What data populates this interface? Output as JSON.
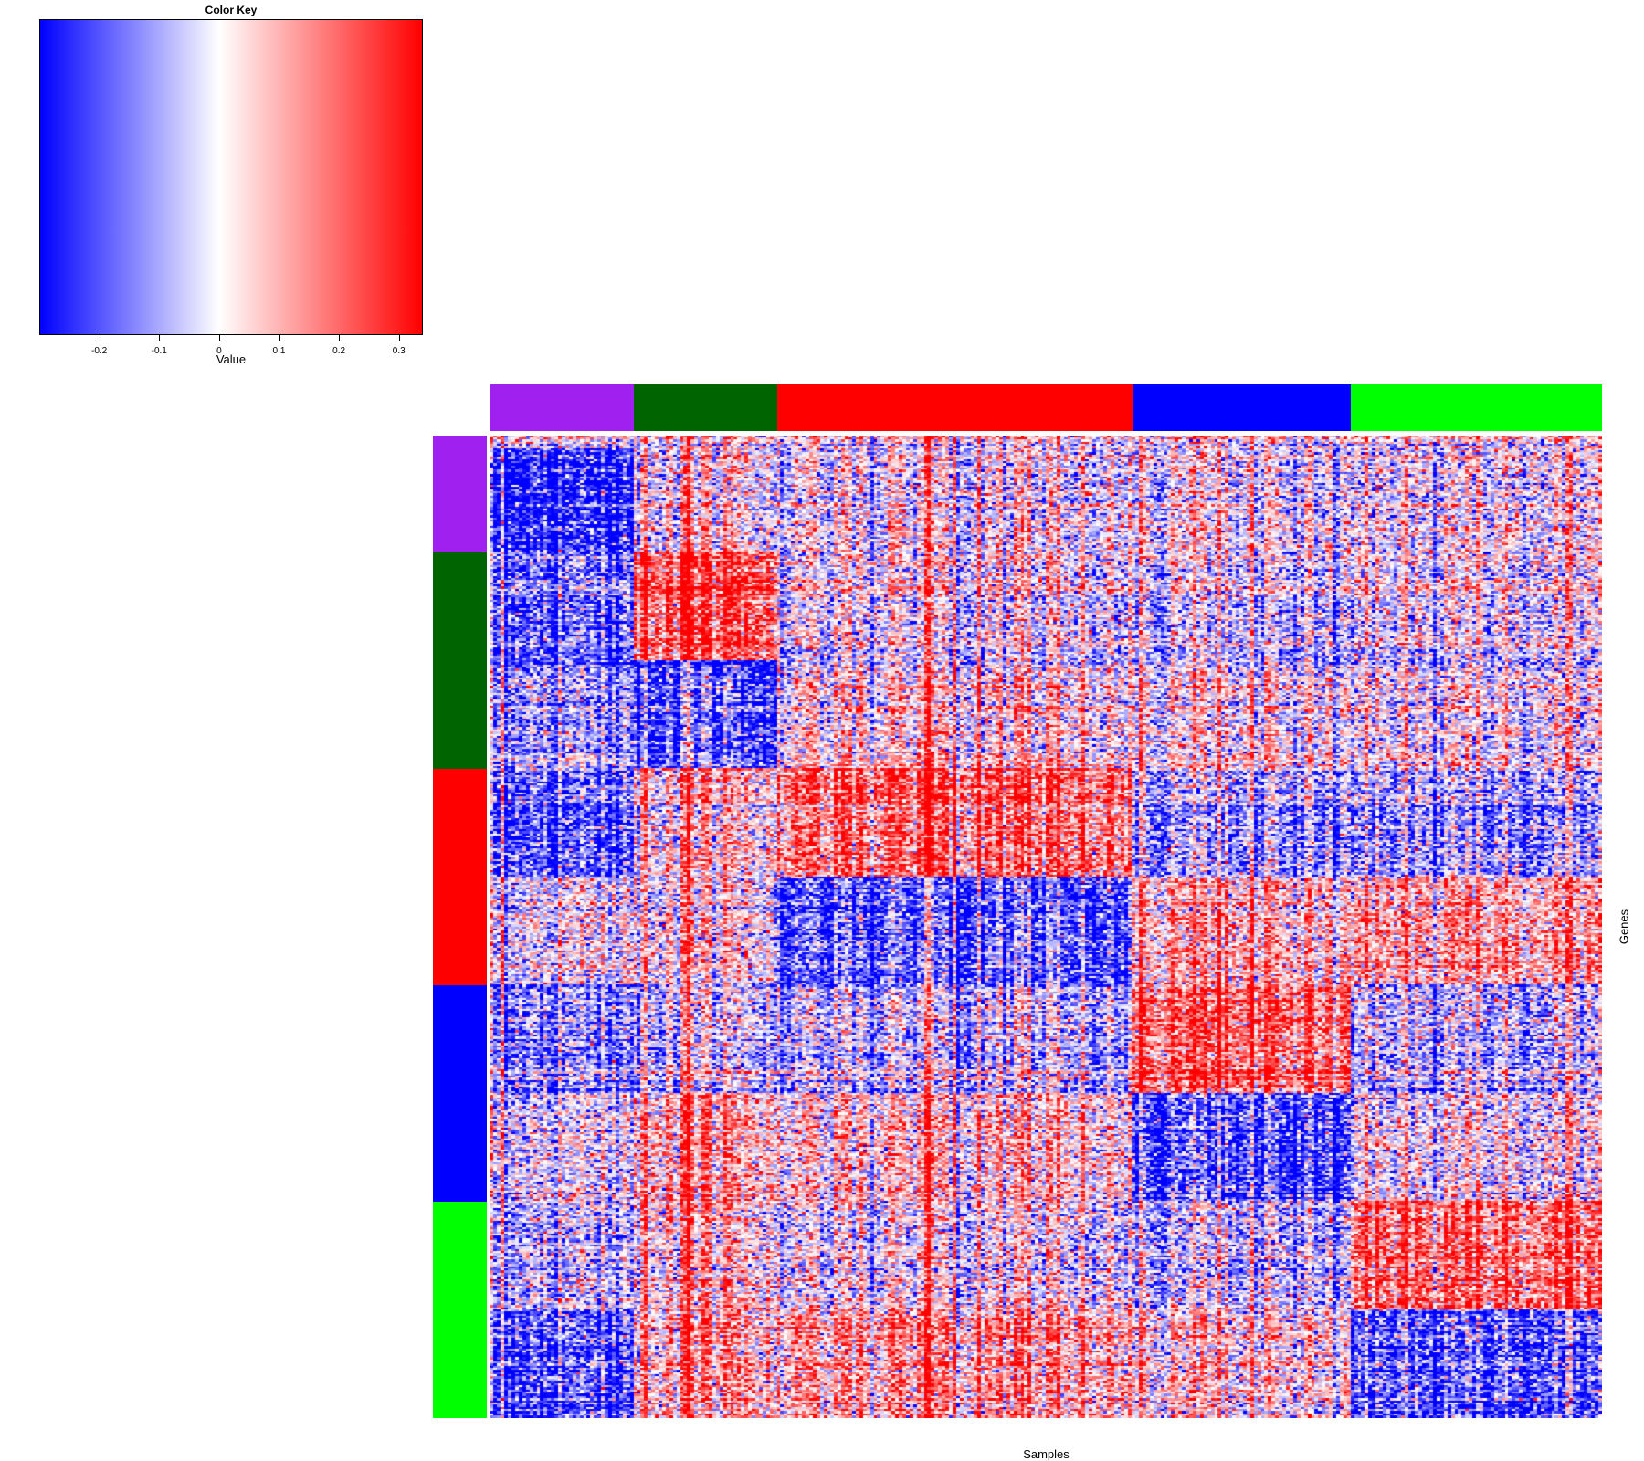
{
  "chart_data": {
    "type": "heatmap",
    "title": "",
    "xlabel": "Samples",
    "ylabel": "Genes",
    "color_key": {
      "title": "Color Key",
      "xlabel": "Value",
      "range": [
        -0.3,
        0.34
      ],
      "ticks": [
        -0.2,
        -0.1,
        0,
        0.1,
        0.2,
        0.3
      ],
      "tick_labels": [
        "-0.2",
        "-0.1",
        "0",
        "0.1",
        "0.2",
        "0.3"
      ],
      "colors": {
        "low": "#0000ff",
        "mid": "#ffffff",
        "high": "#ff0000"
      }
    },
    "sample_groups": [
      {
        "name": "purple",
        "color": "#a020f0",
        "count": 40
      },
      {
        "name": "dark-green",
        "color": "#006400",
        "count": 40
      },
      {
        "name": "red",
        "color": "#ff0000",
        "count": 99
      },
      {
        "name": "blue",
        "color": "#0000ff",
        "count": 61
      },
      {
        "name": "green",
        "color": "#00ff00",
        "count": 70
      }
    ],
    "gene_groups": [
      {
        "name": "purple",
        "color": "#a020f0",
        "count": 54
      },
      {
        "name": "dark-green",
        "color": "#006400",
        "count": 100
      },
      {
        "name": "red",
        "color": "#ff0000",
        "count": 100
      },
      {
        "name": "blue",
        "color": "#0000ff",
        "count": 100
      },
      {
        "name": "green",
        "color": "#00ff00",
        "count": 100
      }
    ],
    "gene_blocks": [
      {
        "rows": 6,
        "pattern": [
          0.08,
          0.08,
          0.08,
          0.08,
          0.08
        ]
      },
      {
        "rows": 48,
        "pattern": [
          -0.26,
          0.02,
          0.0,
          0.0,
          0.0
        ]
      },
      {
        "rows": 50,
        "pattern": [
          -0.16,
          0.24,
          0.0,
          -0.04,
          0.0
        ]
      },
      {
        "rows": 50,
        "pattern": [
          -0.08,
          -0.2,
          0.06,
          0.04,
          0.02
        ]
      },
      {
        "rows": 50,
        "pattern": [
          -0.18,
          0.06,
          0.2,
          -0.1,
          -0.1
        ]
      },
      {
        "rows": 50,
        "pattern": [
          0.0,
          0.02,
          -0.2,
          0.1,
          0.12
        ]
      },
      {
        "rows": 50,
        "pattern": [
          -0.12,
          -0.04,
          -0.06,
          0.22,
          -0.06
        ]
      },
      {
        "rows": 50,
        "pattern": [
          -0.02,
          0.1,
          0.06,
          -0.22,
          0.0
        ]
      },
      {
        "rows": 50,
        "pattern": [
          -0.06,
          0.06,
          0.0,
          -0.06,
          0.2
        ]
      },
      {
        "rows": 50,
        "pattern": [
          -0.2,
          0.1,
          0.12,
          0.04,
          -0.2
        ]
      }
    ],
    "noise_sd": 0.13,
    "grid": false
  }
}
